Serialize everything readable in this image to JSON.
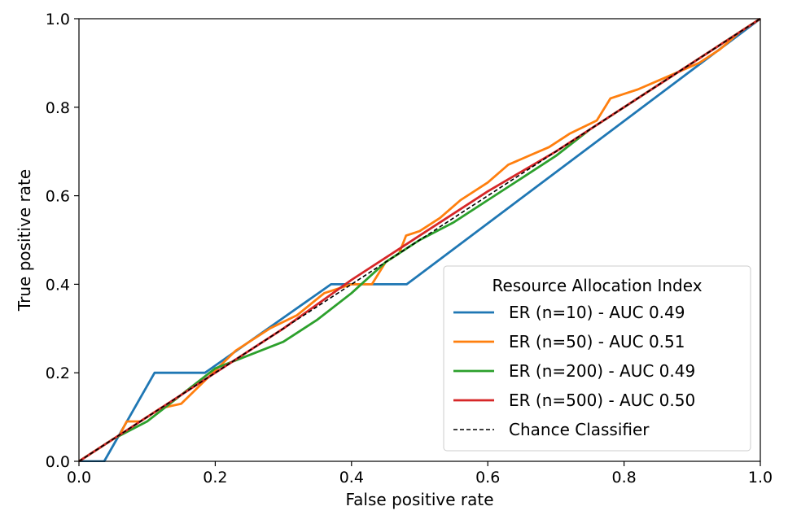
{
  "chart_data": {
    "type": "line",
    "title": "",
    "xlabel": "False positive rate",
    "ylabel": "True positive rate",
    "xlim": [
      0.0,
      1.0
    ],
    "ylim": [
      0.0,
      1.0
    ],
    "x_ticks": [
      "0.0",
      "0.2",
      "0.4",
      "0.6",
      "0.8",
      "1.0"
    ],
    "y_ticks": [
      "0.0",
      "0.2",
      "0.4",
      "0.6",
      "0.8",
      "1.0"
    ],
    "grid": false,
    "legend": {
      "title": "Resource Allocation Index",
      "placement": "lower-right"
    },
    "series": [
      {
        "name": "ER (n=10) - AUC 0.49",
        "color": "#1f77b4",
        "style": "solid",
        "points": [
          [
            0.0,
            0.0
          ],
          [
            0.037,
            0.0
          ],
          [
            0.111,
            0.2
          ],
          [
            0.185,
            0.2
          ],
          [
            0.37,
            0.4
          ],
          [
            0.481,
            0.4
          ],
          [
            1.0,
            1.0
          ]
        ]
      },
      {
        "name": "ER (n=50) - AUC 0.51",
        "color": "#ff7f0e",
        "style": "solid",
        "points": [
          [
            0.0,
            0.0
          ],
          [
            0.03,
            0.03
          ],
          [
            0.06,
            0.06
          ],
          [
            0.07,
            0.09
          ],
          [
            0.09,
            0.09
          ],
          [
            0.12,
            0.12
          ],
          [
            0.15,
            0.13
          ],
          [
            0.19,
            0.19
          ],
          [
            0.23,
            0.25
          ],
          [
            0.28,
            0.3
          ],
          [
            0.32,
            0.33
          ],
          [
            0.36,
            0.38
          ],
          [
            0.4,
            0.4
          ],
          [
            0.43,
            0.4
          ],
          [
            0.45,
            0.45
          ],
          [
            0.47,
            0.47
          ],
          [
            0.48,
            0.51
          ],
          [
            0.5,
            0.52
          ],
          [
            0.53,
            0.55
          ],
          [
            0.56,
            0.59
          ],
          [
            0.6,
            0.63
          ],
          [
            0.63,
            0.67
          ],
          [
            0.66,
            0.69
          ],
          [
            0.69,
            0.71
          ],
          [
            0.72,
            0.74
          ],
          [
            0.76,
            0.77
          ],
          [
            0.78,
            0.82
          ],
          [
            0.82,
            0.84
          ],
          [
            0.85,
            0.86
          ],
          [
            0.88,
            0.88
          ],
          [
            0.91,
            0.9
          ],
          [
            0.94,
            0.93
          ],
          [
            0.97,
            0.97
          ],
          [
            1.0,
            1.0
          ]
        ]
      },
      {
        "name": "ER (n=200) - AUC 0.49",
        "color": "#2ca02c",
        "style": "solid",
        "points": [
          [
            0.0,
            0.0
          ],
          [
            0.05,
            0.05
          ],
          [
            0.1,
            0.09
          ],
          [
            0.15,
            0.15
          ],
          [
            0.2,
            0.21
          ],
          [
            0.25,
            0.24
          ],
          [
            0.3,
            0.27
          ],
          [
            0.35,
            0.32
          ],
          [
            0.4,
            0.38
          ],
          [
            0.45,
            0.45
          ],
          [
            0.5,
            0.5
          ],
          [
            0.55,
            0.54
          ],
          [
            0.6,
            0.59
          ],
          [
            0.65,
            0.64
          ],
          [
            0.7,
            0.69
          ],
          [
            0.75,
            0.75
          ],
          [
            0.8,
            0.8
          ],
          [
            0.85,
            0.85
          ],
          [
            0.9,
            0.9
          ],
          [
            0.95,
            0.95
          ],
          [
            1.0,
            1.0
          ]
        ]
      },
      {
        "name": "ER (n=500) - AUC 0.50",
        "color": "#d62728",
        "style": "solid",
        "points": [
          [
            0.0,
            0.0
          ],
          [
            0.1,
            0.1
          ],
          [
            0.2,
            0.2
          ],
          [
            0.3,
            0.3
          ],
          [
            0.4,
            0.41
          ],
          [
            0.5,
            0.51
          ],
          [
            0.6,
            0.61
          ],
          [
            0.7,
            0.7
          ],
          [
            0.8,
            0.8
          ],
          [
            0.9,
            0.9
          ],
          [
            1.0,
            1.0
          ]
        ]
      },
      {
        "name": "Chance Classifier",
        "color": "#000000",
        "style": "dashed",
        "points": [
          [
            0.0,
            0.0
          ],
          [
            1.0,
            1.0
          ]
        ]
      }
    ]
  }
}
